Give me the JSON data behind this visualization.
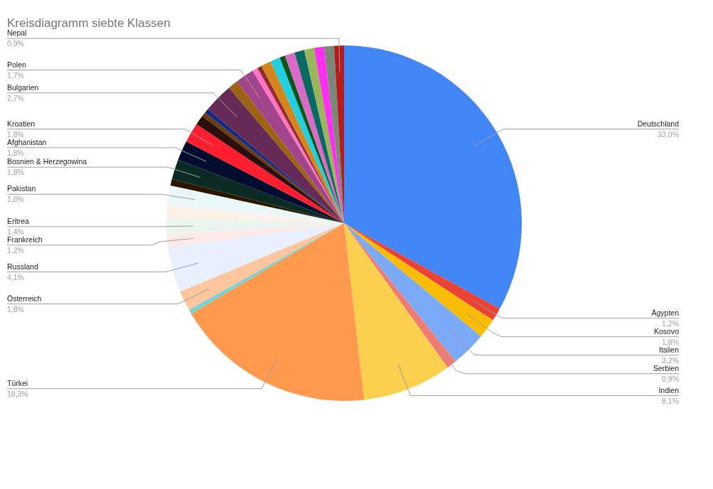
{
  "chart_data": {
    "type": "pie",
    "title": "Kreisdiagramm siebte Klassen",
    "categories": [
      "Deutschland",
      "Ägypten",
      "Kosovo",
      "Italien",
      "Serbien",
      "Indien",
      "Türkei",
      null,
      "Österreich",
      "Russland",
      "Frankreich",
      "Eritrea",
      null,
      "Pakistan",
      null,
      "Bosnien & Herzegowina",
      "Afghanistan",
      "Kroatien",
      null,
      null,
      null,
      "Bulgarien",
      null,
      "Polen",
      null,
      null,
      null,
      null,
      null,
      null,
      null,
      null,
      null,
      null,
      "Nepal"
    ],
    "values": [
      33.0,
      1.2,
      1.8,
      3.2,
      0.9,
      8.1,
      18.3,
      0.4,
      1.8,
      4.1,
      1.2,
      1.4,
      1.2,
      1.8,
      0.6,
      1.8,
      1.8,
      1.8,
      0.9,
      0.4,
      0.4,
      2.7,
      0.9,
      1.7,
      0.5,
      0.4,
      0.9,
      0.9,
      0.5,
      0.9,
      0.9,
      0.9,
      0.9,
      0.9,
      0.9
    ],
    "value_labels": [
      "33,0%",
      "1,2%",
      "1,8%",
      "3,2%",
      "0,9%",
      "8,1%",
      "18,3%",
      null,
      "1,8%",
      "4,1%",
      "1,2%",
      "1,4%",
      null,
      "1,8%",
      null,
      "1,8%",
      "1,8%",
      "1,8%",
      null,
      null,
      null,
      "2,7%",
      null,
      "1,7%",
      null,
      null,
      null,
      null,
      null,
      null,
      null,
      null,
      null,
      null,
      "0,9%"
    ],
    "colors": [
      "#4285f4",
      "#ea4335",
      "#fbbc04",
      "#7baaf7",
      "#f07b72",
      "#fcd04f",
      "#ff994d",
      "#78d3d6",
      "#fdc69c",
      "#e8f0fe",
      "#fde9e8",
      "#e9f5ee",
      "#fdf0e6",
      "#eaf7f8",
      "#2b1700",
      "#0b2a24",
      "#000d2e",
      "#ff1d30",
      "#2a0f0c",
      "#6b3d0d",
      "#0d2a8a",
      "#662a57",
      "#9c6410",
      "#a1448c",
      "#ff74c3",
      "#922c2c",
      "#d4861a",
      "#21cfe0",
      "#0b5417",
      "#d96bc4",
      "#0b6964",
      "#9ab55a",
      "#ff2ef0",
      "#7b8777",
      "#b71c1c"
    ]
  }
}
